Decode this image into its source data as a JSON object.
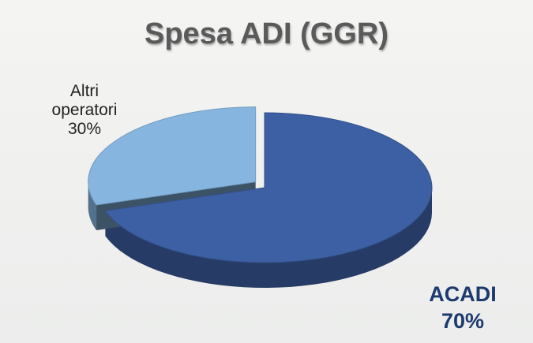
{
  "chart_data": {
    "type": "pie",
    "title": "Spesa ADI (GGR)",
    "categories": [
      "ACADI",
      "Altri operatori"
    ],
    "values": [
      70,
      30
    ],
    "value_labels": [
      "70%",
      "30%"
    ],
    "colors": [
      "#3d5fa3",
      "#86b6e0"
    ]
  }
}
